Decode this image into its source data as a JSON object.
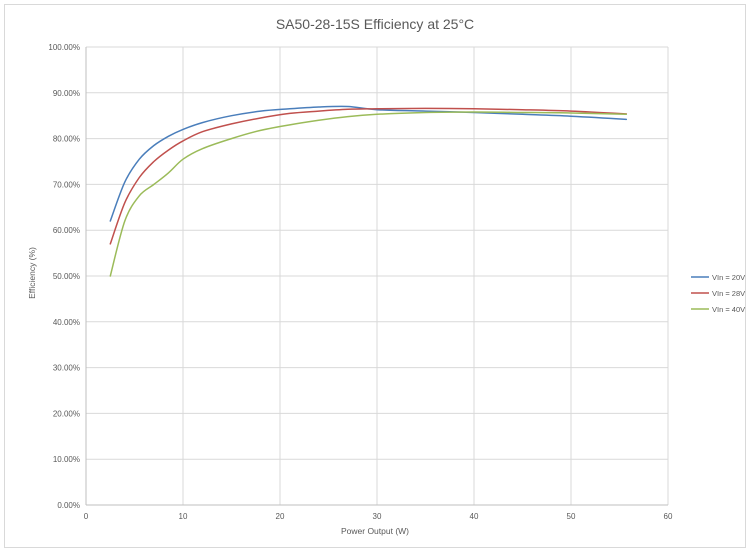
{
  "chart_data": {
    "type": "line",
    "title": "SA50-28-15S Efficiency at 25°C",
    "xlabel": "Power Output (W)",
    "ylabel": "Efficiency (%)",
    "xlim": [
      0,
      60
    ],
    "ylim": [
      0,
      100
    ],
    "x_ticks": [
      "0",
      "10",
      "20",
      "30",
      "40",
      "50",
      "60"
    ],
    "y_ticks": [
      "0.00%",
      "10.00%",
      "20.00%",
      "30.00%",
      "40.00%",
      "50.00%",
      "60.00%",
      "70.00%",
      "80.00%",
      "90.00%",
      "100.00%"
    ],
    "grid": true,
    "legend_position": "right",
    "series": [
      {
        "name": "VIn = 20V",
        "color": "#4a7ebb",
        "x": [
          2.5,
          4,
          5.5,
          7,
          8.5,
          10,
          12,
          15,
          18,
          21,
          24,
          27,
          30,
          35,
          40,
          45,
          50,
          55.7
        ],
        "y": [
          62,
          70.5,
          75.5,
          78.5,
          80.5,
          82,
          83.5,
          85,
          86,
          86.5,
          86.9,
          87,
          86.3,
          86,
          85.7,
          85.3,
          84.9,
          84.2
        ]
      },
      {
        "name": "VIn = 28V",
        "color": "#c0504d",
        "x": [
          2.5,
          4,
          5.5,
          7,
          8.5,
          10,
          12,
          15,
          18,
          21,
          24,
          27,
          30,
          35,
          40,
          45,
          50,
          55.7
        ],
        "y": [
          57,
          66,
          71.5,
          75,
          77.5,
          79.5,
          81.5,
          83.2,
          84.5,
          85.5,
          86,
          86.4,
          86.5,
          86.6,
          86.5,
          86.3,
          86,
          85.4
        ]
      },
      {
        "name": "VIn = 40V",
        "color": "#9bbb59",
        "x": [
          2.5,
          4,
          5.5,
          7,
          8.5,
          10,
          12,
          15,
          18,
          21,
          24,
          27,
          30,
          35,
          40,
          45,
          50,
          55.7
        ],
        "y": [
          50,
          62,
          67.5,
          70,
          72.5,
          75.5,
          77.8,
          80,
          81.8,
          83,
          84,
          84.8,
          85.3,
          85.7,
          85.8,
          85.7,
          85.6,
          85.3
        ]
      }
    ]
  }
}
